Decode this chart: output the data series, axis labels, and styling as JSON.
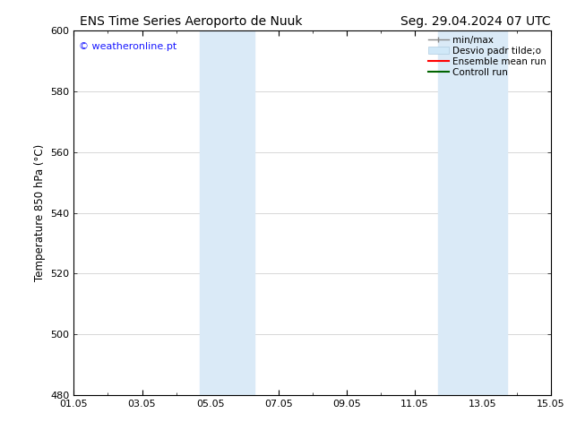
{
  "title_left": "ENS Time Series Aeroporto de Nuuk",
  "title_right": "Seg. 29.04.2024 07 UTC",
  "ylabel": "Temperature 850 hPa (°C)",
  "xlim": [
    0,
    14
  ],
  "ylim": [
    480,
    600
  ],
  "yticks": [
    480,
    500,
    520,
    540,
    560,
    580,
    600
  ],
  "xtick_labels": [
    "01.05",
    "03.05",
    "05.05",
    "07.05",
    "09.05",
    "11.05",
    "13.05",
    "15.05"
  ],
  "xtick_positions": [
    0,
    2,
    4,
    6,
    8,
    10,
    12,
    14
  ],
  "shaded_bands": [
    {
      "x_start": 3.7,
      "x_end": 5.3,
      "color": "#daeaf7"
    },
    {
      "x_start": 10.7,
      "x_end": 12.7,
      "color": "#daeaf7"
    }
  ],
  "watermark_text": "© weatheronline.pt",
  "watermark_color": "#1a1aff",
  "background_color": "#ffffff",
  "plot_bg_color": "#ffffff",
  "border_color": "#000000",
  "grid_color": "#c8c8c8",
  "title_fontsize": 10,
  "label_fontsize": 8.5,
  "tick_fontsize": 8,
  "legend_fontsize": 7.5
}
